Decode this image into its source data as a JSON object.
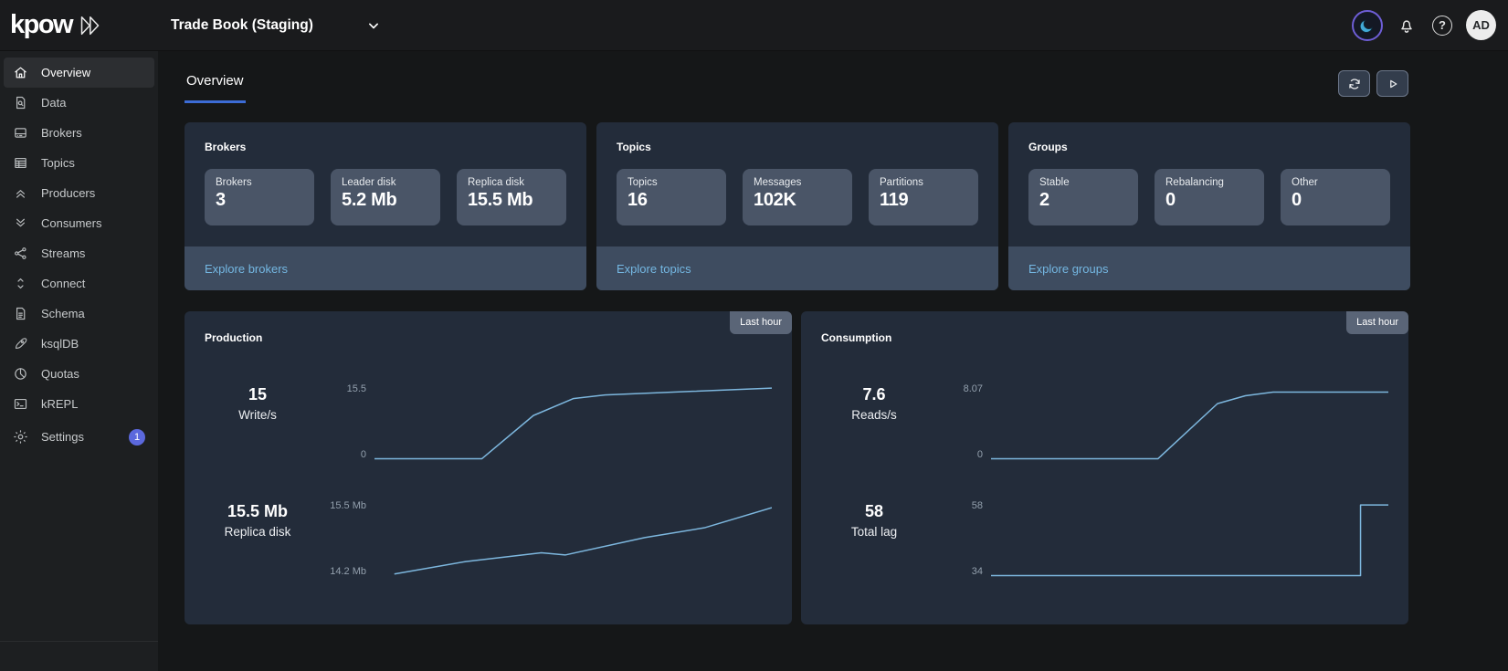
{
  "topbar": {
    "logo_text": "kpow",
    "environment_label": "Trade Book (Staging)",
    "avatar_initials": "AD",
    "help_glyph": "?"
  },
  "sidebar": {
    "items": [
      {
        "label": "Overview",
        "icon": "home",
        "active": true
      },
      {
        "label": "Data",
        "icon": "document-search",
        "active": false
      },
      {
        "label": "Brokers",
        "icon": "broker-drive",
        "active": false
      },
      {
        "label": "Topics",
        "icon": "topics-table",
        "active": false
      },
      {
        "label": "Producers",
        "icon": "chevrons-up",
        "active": false
      },
      {
        "label": "Consumers",
        "icon": "chevrons-down",
        "active": false
      },
      {
        "label": "Streams",
        "icon": "share-network",
        "active": false
      },
      {
        "label": "Connect",
        "icon": "sort-chevrons",
        "active": false
      },
      {
        "label": "Schema",
        "icon": "schema-file",
        "active": false
      },
      {
        "label": "ksqlDB",
        "icon": "rocket",
        "active": false
      },
      {
        "label": "Quotas",
        "icon": "pie-chart",
        "active": false
      },
      {
        "label": "kREPL",
        "icon": "terminal",
        "active": false
      },
      {
        "label": "Settings",
        "icon": "gear",
        "badge": "1",
        "active": false
      }
    ]
  },
  "page": {
    "active_tab": "Overview"
  },
  "stat_cards": [
    {
      "title": "Brokers",
      "link": "Explore brokers",
      "stats": [
        {
          "label": "Brokers",
          "value": "3"
        },
        {
          "label": "Leader disk",
          "value": "5.2 Mb"
        },
        {
          "label": "Replica disk",
          "value": "15.5 Mb"
        }
      ]
    },
    {
      "title": "Topics",
      "link": "Explore topics",
      "stats": [
        {
          "label": "Topics",
          "value": "16"
        },
        {
          "label": "Messages",
          "value": "102K"
        },
        {
          "label": "Partitions",
          "value": "119"
        }
      ]
    },
    {
      "title": "Groups",
      "link": "Explore groups",
      "stats": [
        {
          "label": "Stable",
          "value": "2"
        },
        {
          "label": "Rebalancing",
          "value": "0"
        },
        {
          "label": "Other",
          "value": "0"
        }
      ]
    }
  ],
  "chart_data": [
    {
      "type": "line",
      "title": "Production",
      "badge": "Last hour",
      "legend_position": "none",
      "grid": false,
      "rows": [
        {
          "stat": "15",
          "label": "Write/s",
          "ymax_label": "15.5",
          "ymin_label": "0",
          "ymin": 0,
          "ymax": 15.5,
          "points": [
            [
              0,
              0
            ],
            [
              27,
              0
            ],
            [
              40,
              9.5
            ],
            [
              50,
              13.2
            ],
            [
              58,
              14.0
            ],
            [
              80,
              14.8
            ],
            [
              100,
              15.5
            ]
          ]
        },
        {
          "stat": "15.5 Mb",
          "label": "Replica disk",
          "ymax_label": "15.5 Mb",
          "ymin_label": "14.2 Mb",
          "ymin": 14.2,
          "ymax": 15.5,
          "points": [
            [
              5,
              14.23
            ],
            [
              23,
              14.46
            ],
            [
              42,
              14.62
            ],
            [
              48,
              14.58
            ],
            [
              68,
              14.9
            ],
            [
              83,
              15.08
            ],
            [
              100,
              15.45
            ]
          ]
        }
      ]
    },
    {
      "type": "line",
      "title": "Consumption",
      "badge": "Last hour",
      "legend_position": "none",
      "grid": false,
      "rows": [
        {
          "stat": "7.6",
          "label": "Reads/s",
          "ymax_label": "8.07",
          "ymin_label": "0",
          "ymin": 0,
          "ymax": 8.07,
          "points": [
            [
              0,
              0
            ],
            [
              42,
              0
            ],
            [
              57,
              6.3
            ],
            [
              64,
              7.2
            ],
            [
              71,
              7.62
            ],
            [
              100,
              7.62
            ]
          ]
        },
        {
          "stat": "58",
          "label": "Total lag",
          "ymax_label": "58",
          "ymin_label": "34",
          "ymin": 34,
          "ymax": 58,
          "points": [
            [
              0,
              34
            ],
            [
              93,
              34
            ],
            [
              93,
              58
            ],
            [
              100,
              58
            ]
          ]
        }
      ]
    }
  ],
  "colors": {
    "accent_blue": "#3c6cd6",
    "link_blue": "#74b7e2",
    "chart_line": "#7db7de",
    "badge_bg": "#5a6577",
    "settings_badge_bg": "#5b68dd",
    "card_bg": "#232c3a",
    "tile_bg": "#4a5567",
    "footer_bg": "#3e4c60"
  }
}
